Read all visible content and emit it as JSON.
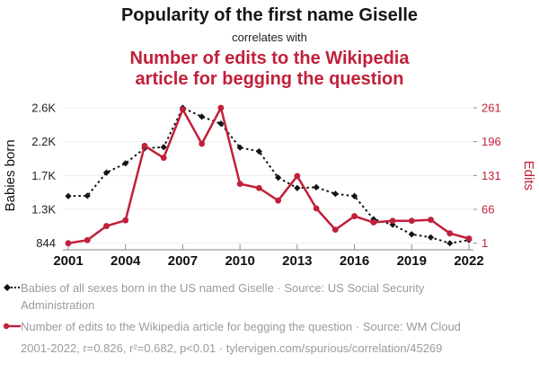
{
  "header": {
    "title_black": "Popularity of the first name Giselle",
    "connector": "correlates with",
    "title_red": "Number of edits to the Wikipedia article for begging the question"
  },
  "colors": {
    "red": "#c1203a",
    "series_black": "#141414",
    "gray_text": "#9b9b9b",
    "gridline": "#ececec",
    "axis": "#8a8a8a",
    "x_tick_label": "#111111",
    "left_tick_label": "#222222"
  },
  "chart_data": {
    "type": "line",
    "title": "Popularity of the first name Giselle correlates with Number of edits to the Wikipedia article for begging the question",
    "x": [
      2001,
      2002,
      2003,
      2004,
      2005,
      2006,
      2007,
      2008,
      2009,
      2010,
      2011,
      2012,
      2013,
      2014,
      2015,
      2016,
      2017,
      2018,
      2019,
      2020,
      2021,
      2022
    ],
    "x_ticks": [
      2001,
      2004,
      2007,
      2010,
      2013,
      2016,
      2019,
      2022
    ],
    "series": [
      {
        "name": "Babies of all sexes born in the US named Giselle",
        "axis": "left",
        "style": "dotted-diamond",
        "values": [
          1455,
          1460,
          1760,
          1880,
          2075,
          2090,
          2600,
          2485,
          2395,
          2085,
          2035,
          1695,
          1560,
          1570,
          1485,
          1455,
          1155,
          1085,
          960,
          920,
          844,
          885
        ]
      },
      {
        "name": "Number of edits to the Wikipedia article for begging the question",
        "axis": "right",
        "style": "solid-circle",
        "values": [
          1,
          7,
          34,
          45,
          188,
          165,
          258,
          192,
          261,
          115,
          107,
          83,
          130,
          68,
          27,
          53,
          41,
          44,
          44,
          46,
          20,
          10
        ]
      }
    ],
    "left_axis": {
      "label": "Babies born",
      "range": [
        844,
        2600
      ],
      "ticks": [
        844,
        1283,
        1722,
        2161,
        2600
      ],
      "tick_labels": [
        "844",
        "1.3K",
        "1.7K",
        "2.2K",
        "2.6K"
      ]
    },
    "right_axis": {
      "label": "Edits",
      "range": [
        1,
        261
      ],
      "ticks": [
        1,
        66,
        131,
        196,
        261
      ],
      "tick_labels": [
        "1",
        "66",
        "131",
        "196",
        "261"
      ]
    },
    "grid": "horizontal-only",
    "legend_position": "bottom"
  },
  "legend": {
    "entries": [
      {
        "label": "Babies of all sexes born in the US named Giselle · Source: US Social Security Administration"
      },
      {
        "label": "Number of edits to the Wikipedia article for begging the question · Source: WM Cloud"
      }
    ],
    "footnote": "2001-2022, r=0.826, r²=0.682, p<0.01 · tylervigen.com/spurious/correlation/45269"
  }
}
